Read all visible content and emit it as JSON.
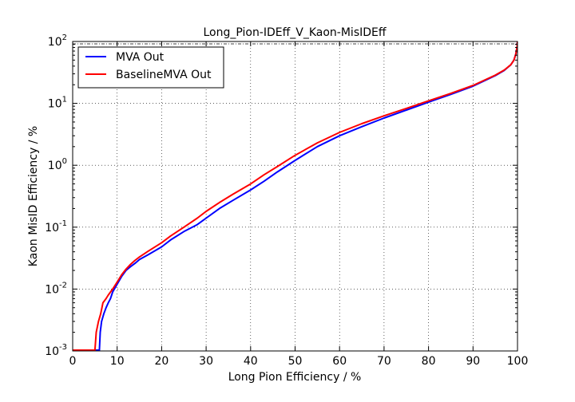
{
  "chart_data": {
    "type": "line",
    "title": "Long_Pion-IDEff_V_Kaon-MisIDEff",
    "xlabel": "Long Pion Efficiency / %",
    "ylabel": "Kaon MisID Efficiency / %",
    "xlim": [
      0,
      100
    ],
    "ylim": [
      0.001,
      100
    ],
    "yscale": "log",
    "grid": true,
    "legend_position": "top-left",
    "xticks": [
      "0",
      "10",
      "20",
      "30",
      "40",
      "50",
      "60",
      "70",
      "80",
      "90",
      "100"
    ],
    "yticks": [
      {
        "base": "10",
        "exp": "-3",
        "value": 0.001
      },
      {
        "base": "10",
        "exp": "-2",
        "value": 0.01
      },
      {
        "base": "10",
        "exp": "-1",
        "value": 0.1
      },
      {
        "base": "10",
        "exp": "0",
        "value": 1
      },
      {
        "base": "10",
        "exp": "1",
        "value": 10
      },
      {
        "base": "10",
        "exp": "2",
        "value": 100
      }
    ],
    "series": [
      {
        "name": "MVA Out",
        "color": "#0000ff",
        "x": [
          6.0,
          6.2,
          6.5,
          7.0,
          7.5,
          8.0,
          8.5,
          9.0,
          10.0,
          11.0,
          12.0,
          13.0,
          14.0,
          15.0,
          17.0,
          20.0,
          22.0,
          25.0,
          28.0,
          30.0,
          33.0,
          36.0,
          40.0,
          43.0,
          46.0,
          50.0,
          55.0,
          60.0,
          65.0,
          70.0,
          75.0,
          80.0,
          85.0,
          90.0,
          93.0,
          95.0,
          97.0,
          98.5,
          99.2,
          99.6,
          99.9,
          100.0
        ],
        "y": [
          0.001,
          0.002,
          0.003,
          0.004,
          0.005,
          0.006,
          0.007,
          0.009,
          0.012,
          0.016,
          0.02,
          0.023,
          0.026,
          0.03,
          0.036,
          0.048,
          0.062,
          0.085,
          0.11,
          0.14,
          0.2,
          0.27,
          0.4,
          0.55,
          0.78,
          1.2,
          2.0,
          3.0,
          4.2,
          5.8,
          7.8,
          10.5,
          14.0,
          19.0,
          24.0,
          28.0,
          34.0,
          42.0,
          50.0,
          62.0,
          80.0,
          100.0
        ]
      },
      {
        "name": "BaselineMVA Out",
        "color": "#ff0000",
        "x": [
          5.0,
          5.3,
          5.8,
          6.3,
          6.8,
          7.5,
          8.0,
          9.0,
          10.0,
          11.0,
          12.0,
          13.0,
          14.0,
          15.0,
          17.0,
          20.0,
          22.0,
          25.0,
          28.0,
          30.0,
          33.0,
          36.0,
          40.0,
          43.0,
          46.0,
          50.0,
          55.0,
          60.0,
          65.0,
          70.0,
          75.0,
          80.0,
          85.0,
          90.0,
          93.0,
          95.0,
          97.0,
          98.5,
          99.2,
          99.6,
          99.9,
          100.0
        ],
        "y": [
          0.001,
          0.002,
          0.003,
          0.004,
          0.006,
          0.007,
          0.008,
          0.01,
          0.013,
          0.017,
          0.021,
          0.025,
          0.029,
          0.033,
          0.041,
          0.056,
          0.072,
          0.1,
          0.14,
          0.18,
          0.25,
          0.34,
          0.5,
          0.7,
          0.95,
          1.45,
          2.3,
          3.4,
          4.7,
          6.3,
          8.3,
          11.0,
          14.5,
          19.5,
          24.5,
          28.5,
          34.5,
          42.0,
          50.0,
          62.0,
          80.0,
          100.0
        ]
      }
    ]
  }
}
